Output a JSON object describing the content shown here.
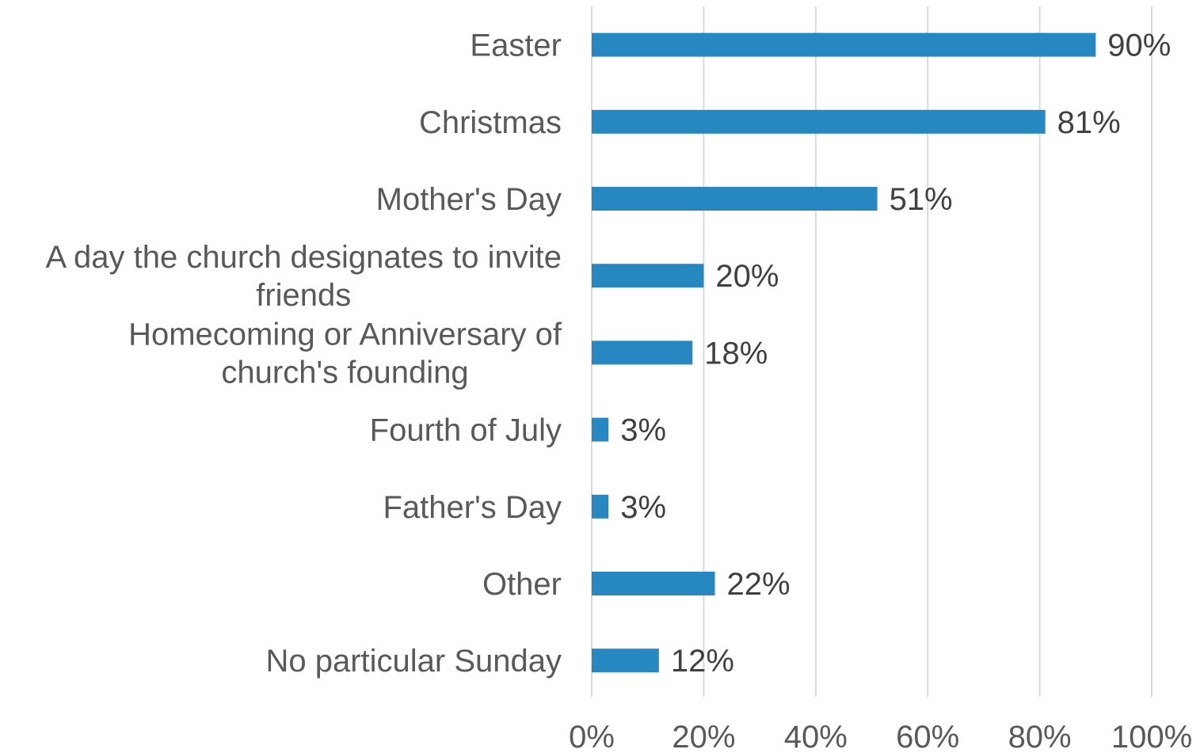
{
  "chart_data": {
    "type": "bar",
    "orientation": "horizontal",
    "categories": [
      "Easter",
      "Christmas",
      "Mother's Day",
      "A day the church designates to invite friends",
      "Homecoming or Anniversary of church's founding",
      "Fourth of July",
      "Father's Day",
      "Other",
      "No particular Sunday"
    ],
    "category_lines": [
      [
        "Easter"
      ],
      [
        "Christmas"
      ],
      [
        "Mother's Day"
      ],
      [
        "A day the church designates to invite",
        "friends"
      ],
      [
        "Homecoming or Anniversary of",
        "church's founding"
      ],
      [
        "Fourth of July"
      ],
      [
        "Father's Day"
      ],
      [
        "Other"
      ],
      [
        "No particular Sunday"
      ]
    ],
    "values": [
      90,
      81,
      51,
      20,
      18,
      3,
      3,
      22,
      12
    ],
    "data_labels": [
      "90%",
      "81%",
      "51%",
      "20%",
      "18%",
      "3%",
      "3%",
      "22%",
      "12%"
    ],
    "xlim": [
      0,
      100
    ],
    "xticks": [
      "0%",
      "20%",
      "40%",
      "60%",
      "80%",
      "100%"
    ],
    "grid": true,
    "bar_color": "#2787C0",
    "title": "",
    "xlabel": "",
    "ylabel": ""
  }
}
